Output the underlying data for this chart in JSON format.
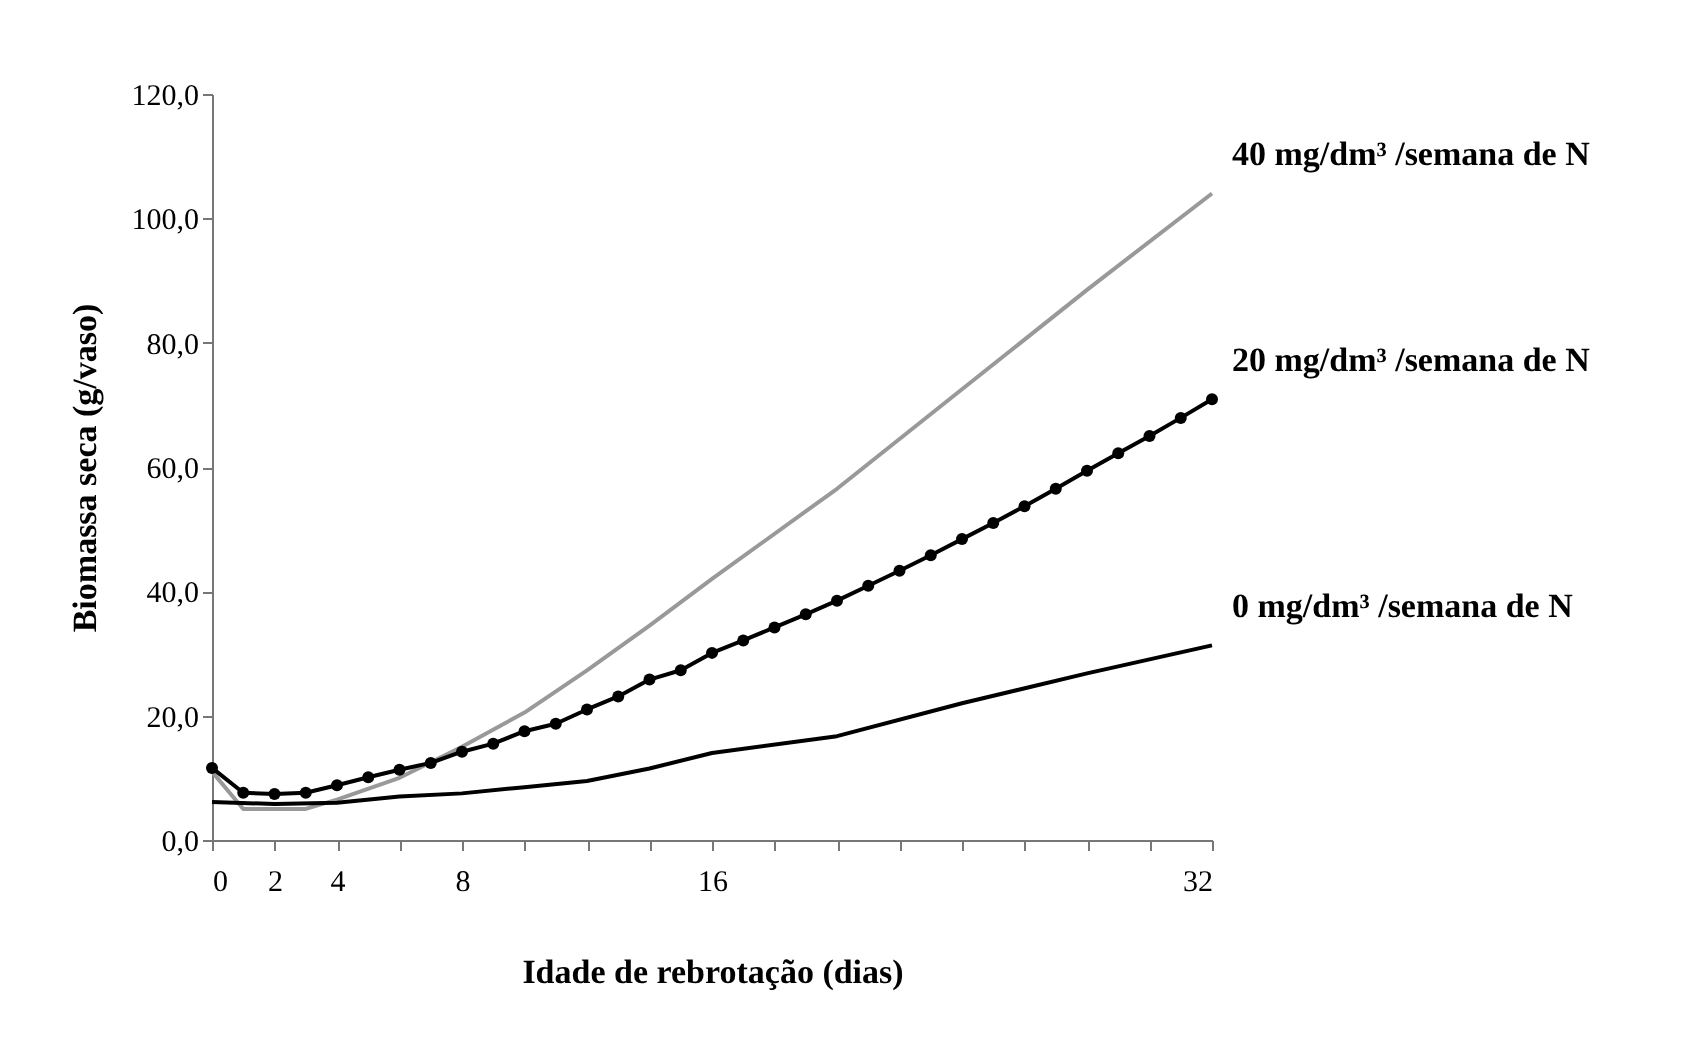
{
  "chart_data": {
    "type": "line",
    "xlabel": "Idade de rebrotação (dias)",
    "ylabel": "Biomassa seca (g/vaso)",
    "xlim": [
      0,
      32
    ],
    "ylim": [
      0,
      120
    ],
    "xticks": [
      0,
      2,
      4,
      {
        "value": 6,
        "label": null
      },
      8,
      {
        "value": 10,
        "label": null
      },
      {
        "value": 12,
        "label": null
      },
      {
        "value": 14,
        "label": null
      },
      16,
      {
        "value": 18,
        "label": null
      },
      {
        "value": 20,
        "label": null
      },
      {
        "value": 22,
        "label": null
      },
      {
        "value": 24,
        "label": null
      },
      {
        "value": 26,
        "label": null
      },
      {
        "value": 28,
        "label": null
      },
      {
        "value": 30,
        "label": null
      },
      32
    ],
    "yticks": [
      {
        "value": 0,
        "label": "0,0"
      },
      {
        "value": 20,
        "label": "20,0"
      },
      {
        "value": 40,
        "label": "40,0"
      },
      {
        "value": 60,
        "label": "60,0"
      },
      {
        "value": 80,
        "label": "80,0"
      },
      {
        "value": 100,
        "label": "100,0"
      },
      {
        "value": 120,
        "label": "120,0"
      }
    ],
    "grid": false,
    "legend": false,
    "line_style": "solid",
    "series": [
      {
        "name": "40 mg/dm³ /semana de N",
        "color": "#999999",
        "marker": "none",
        "x": [
          0,
          1,
          2,
          3,
          4,
          6,
          8,
          10,
          12,
          14,
          16,
          20,
          24,
          28,
          32
        ],
        "values": [
          11.0,
          5.0,
          5.0,
          5.0,
          6.5,
          10.0,
          15.0,
          20.5,
          27.3,
          34.5,
          42.0,
          56.5,
          72.5,
          88.5,
          104.0
        ]
      },
      {
        "name": "20 mg/dm³ /semana de N",
        "color": "#000000",
        "marker": "circle",
        "x": [
          0,
          1,
          2,
          3,
          4,
          5,
          6,
          7,
          8,
          9,
          10,
          11,
          12,
          13,
          14,
          15,
          16,
          17,
          18,
          19,
          20,
          21,
          22,
          23,
          24,
          25,
          26,
          27,
          28,
          29,
          30,
          31,
          32
        ],
        "values": [
          11.6,
          7.6,
          7.4,
          7.6,
          8.8,
          10.1,
          11.3,
          12.4,
          14.2,
          15.5,
          17.5,
          18.7,
          21.0,
          23.1,
          25.8,
          27.3,
          30.1,
          32.1,
          34.2,
          36.3,
          38.5,
          40.9,
          43.3,
          45.8,
          48.4,
          51.0,
          53.7,
          56.5,
          59.4,
          62.2,
          65.0,
          67.9,
          70.9
        ]
      },
      {
        "name": "0 mg/dm³ /semana de N",
        "color": "#000000",
        "marker": "none",
        "x": [
          0,
          2,
          4,
          6,
          8,
          10,
          12,
          14,
          16,
          20,
          24,
          28,
          32
        ],
        "values": [
          6.1,
          5.8,
          6.0,
          7.0,
          7.5,
          8.5,
          9.5,
          11.5,
          14.0,
          16.7,
          22.0,
          26.8,
          31.3
        ]
      }
    ]
  }
}
